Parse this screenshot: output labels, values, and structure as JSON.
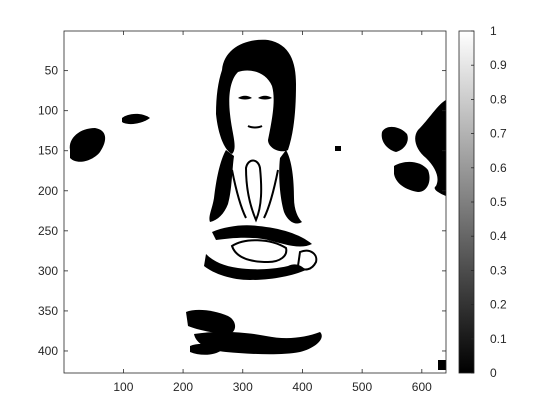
{
  "chart_data": {
    "type": "heatmap",
    "title": "",
    "xlabel": "",
    "ylabel": "",
    "xlim": [
      0.5,
      640.5
    ],
    "ylim": [
      0.5,
      427.5
    ],
    "y_direction": "reverse",
    "x_ticks": [
      100,
      200,
      300,
      400,
      500,
      600
    ],
    "y_ticks": [
      50,
      100,
      150,
      200,
      250,
      300,
      350,
      400
    ],
    "colormap": "gray",
    "color_limits": [
      0,
      1
    ],
    "colorbar_ticks": [
      "0",
      "0.1",
      "0.2",
      "0.3",
      "0.4",
      "0.5",
      "0.6",
      "0.7",
      "0.8",
      "0.9",
      "1"
    ],
    "colorbar_position": "right",
    "grid": false,
    "image_content": "binary thresholded photograph: child seated cross-legged with palms together",
    "values_present": [
      0,
      1
    ]
  }
}
